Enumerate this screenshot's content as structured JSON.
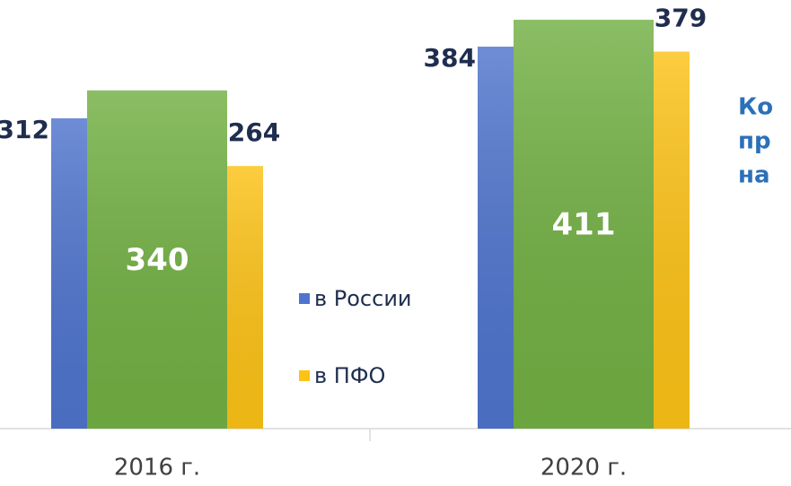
{
  "chart_data": {
    "type": "bar",
    "categories": [
      "2016 г.",
      "2020 г."
    ],
    "series": [
      {
        "name": "в России",
        "color": "#4f74cd",
        "values": [
          312,
          384
        ]
      },
      {
        "color": "#72b043",
        "values": [
          340,
          411
        ]
      },
      {
        "name": "в ПФО",
        "color": "#fcc216",
        "values": [
          264,
          379
        ]
      }
    ],
    "ylim": [
      0,
      430
    ],
    "annotation": [
      "Ко",
      "пр",
      "на"
    ]
  }
}
